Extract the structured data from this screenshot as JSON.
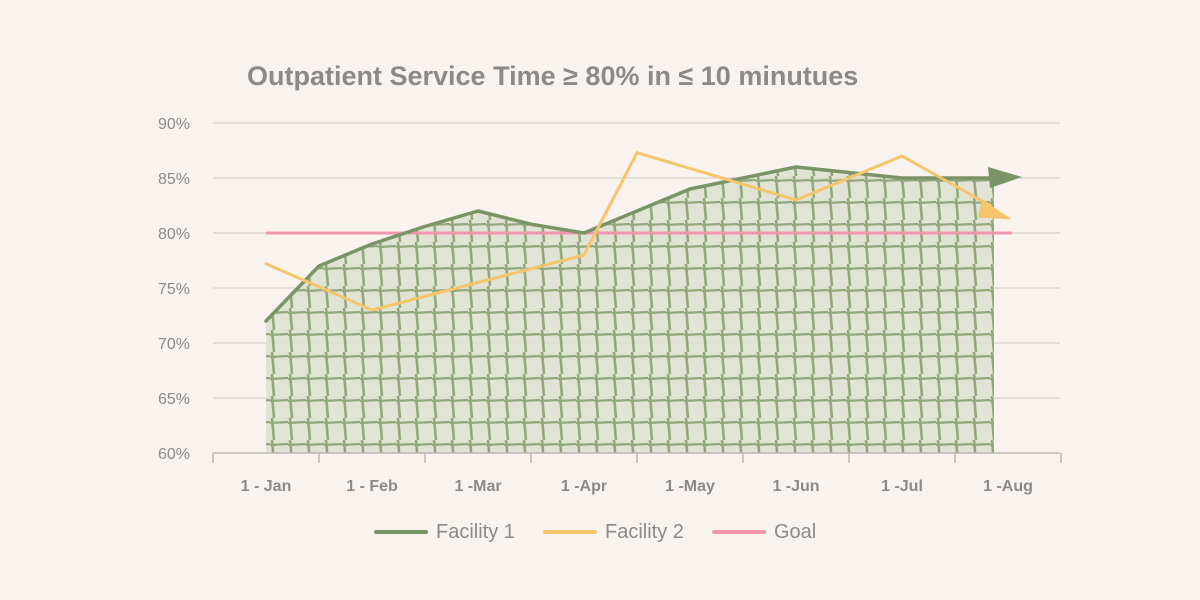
{
  "chart_data": {
    "type": "line",
    "title": "Outpatient Service Time ≥ 80% in ≤ 10 minutues",
    "categories": [
      "1 - Jan",
      "1 - Feb",
      "1 -Mar",
      "1 -Apr",
      "1 -May",
      "1 -Jun",
      "1 -Jul",
      "1 -Aug"
    ],
    "y_tick_labels": [
      "60%",
      "65%",
      "70%",
      "75%",
      "80%",
      "85%",
      "90%"
    ],
    "ylim": [
      60,
      90
    ],
    "y_unit": "%",
    "grid": "horizontal",
    "legend_position": "bottom",
    "series": [
      {
        "name": "Facility 1",
        "color": "#7a9467",
        "style": "area-hatched",
        "points": [
          {
            "x": "1 - Jan",
            "y": 72
          },
          {
            "x": "mid-Jan",
            "y": 77
          },
          {
            "x": "1 - Feb",
            "y": 79
          },
          {
            "x": "mid-Feb",
            "y": 80.6
          },
          {
            "x": "1 -Mar",
            "y": 82
          },
          {
            "x": "mid-Mar",
            "y": 80.8
          },
          {
            "x": "1 -Apr",
            "y": 80
          },
          {
            "x": "mid-Apr",
            "y": 82
          },
          {
            "x": "1 -May",
            "y": 84
          },
          {
            "x": "mid-May",
            "y": 85
          },
          {
            "x": "1 -Jun",
            "y": 86
          },
          {
            "x": "mid-Jun",
            "y": 85.5
          },
          {
            "x": "1 -Jul",
            "y": 85
          },
          {
            "x": "mid-Jul",
            "y": 85
          },
          {
            "x": "1 -Aug",
            "y": 85
          }
        ]
      },
      {
        "name": "Facility 2",
        "color": "#f5c56b",
        "style": "line",
        "points": [
          {
            "x": "1 - Jan",
            "y": 77.2
          },
          {
            "x": "1 - Feb",
            "y": 73
          },
          {
            "x": "1 -Mar",
            "y": 75.5
          },
          {
            "x": "1 -Apr",
            "y": 78
          },
          {
            "x": "mid-Apr",
            "y": 87.3
          },
          {
            "x": "1 -Jun",
            "y": 83
          },
          {
            "x": "1 -Jul",
            "y": 87
          },
          {
            "x": "1 -Aug",
            "y": 82.5
          }
        ]
      },
      {
        "name": "Goal",
        "color": "#f294ae",
        "style": "line",
        "value": 80
      }
    ]
  }
}
